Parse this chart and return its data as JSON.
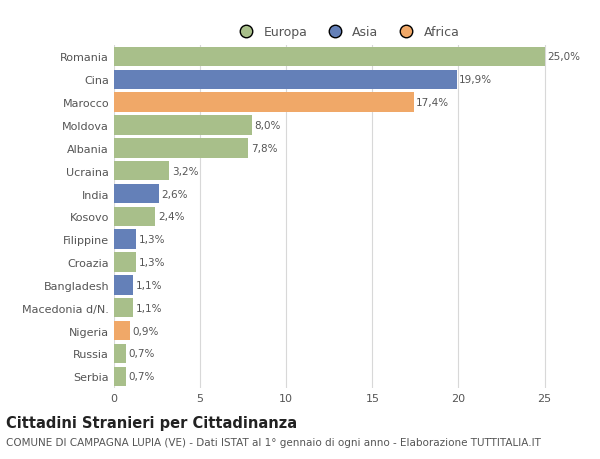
{
  "categories": [
    "Serbia",
    "Russia",
    "Nigeria",
    "Macedonia d/N.",
    "Bangladesh",
    "Croazia",
    "Filippine",
    "Kosovo",
    "India",
    "Ucraina",
    "Albania",
    "Moldova",
    "Marocco",
    "Cina",
    "Romania"
  ],
  "values": [
    0.7,
    0.7,
    0.9,
    1.1,
    1.1,
    1.3,
    1.3,
    2.4,
    2.6,
    3.2,
    7.8,
    8.0,
    17.4,
    19.9,
    25.0
  ],
  "labels": [
    "0,7%",
    "0,7%",
    "0,9%",
    "1,1%",
    "1,1%",
    "1,3%",
    "1,3%",
    "2,4%",
    "2,6%",
    "3,2%",
    "7,8%",
    "8,0%",
    "17,4%",
    "19,9%",
    "25,0%"
  ],
  "colors": [
    "#a8bf8a",
    "#a8bf8a",
    "#f0a868",
    "#a8bf8a",
    "#6480b8",
    "#a8bf8a",
    "#6480b8",
    "#a8bf8a",
    "#6480b8",
    "#a8bf8a",
    "#a8bf8a",
    "#a8bf8a",
    "#f0a868",
    "#6480b8",
    "#a8bf8a"
  ],
  "legend_labels": [
    "Europa",
    "Asia",
    "Africa"
  ],
  "legend_colors": [
    "#a8bf8a",
    "#6480b8",
    "#f0a868"
  ],
  "title": "Cittadini Stranieri per Cittadinanza",
  "subtitle": "COMUNE DI CAMPAGNA LUPIA (VE) - Dati ISTAT al 1° gennaio di ogni anno - Elaborazione TUTTITALIA.IT",
  "xlim": [
    0,
    27
  ],
  "xticks": [
    0,
    5,
    10,
    15,
    20,
    25
  ],
  "background_color": "#ffffff",
  "bar_height": 0.85,
  "grid_color": "#d8d8d8",
  "title_fontsize": 10.5,
  "subtitle_fontsize": 7.5,
  "label_fontsize": 7.5,
  "tick_fontsize": 8,
  "legend_fontsize": 9
}
